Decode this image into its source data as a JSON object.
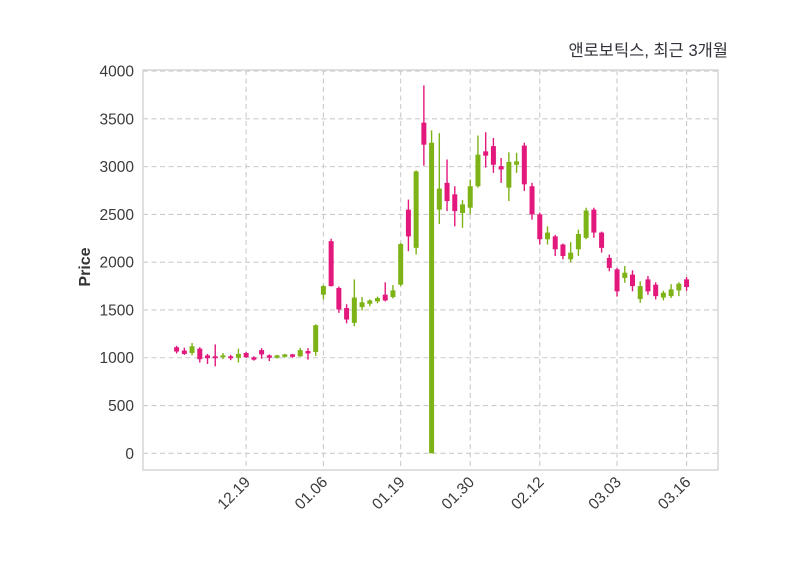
{
  "title": "앤로보틱스, 최근 3개월",
  "colors": {
    "up": "#7db317",
    "down": "#e2187d",
    "grid": "#cbcbcb",
    "border": "#d6d6d6",
    "tick_text": "#3a3a3a",
    "title_text": "#31313a",
    "background": "#ffffff"
  },
  "chart_data": {
    "type": "candlestick",
    "title": "앤로보틱스, 최근 3개월",
    "xlabel": "",
    "ylabel": "Price",
    "ylim": [
      0,
      4000
    ],
    "yticks": [
      0,
      500,
      1000,
      1500,
      2000,
      2500,
      3000,
      3500,
      4000
    ],
    "grid": "dashed",
    "legend": "none",
    "xticklabels": [
      "12.19",
      "01.06",
      "01.19",
      "01.30",
      "02.12",
      "03.03",
      "03.16"
    ],
    "xtick_candle_indices": [
      9,
      19,
      29,
      38,
      47,
      57,
      66
    ],
    "candles_format": [
      "open",
      "high",
      "low",
      "close"
    ],
    "candles": [
      [
        1110,
        1125,
        1045,
        1065
      ],
      [
        1075,
        1105,
        1030,
        1040
      ],
      [
        1050,
        1155,
        1025,
        1120
      ],
      [
        1095,
        1110,
        950,
        985
      ],
      [
        1025,
        1040,
        935,
        995
      ],
      [
        1015,
        1140,
        910,
        995
      ],
      [
        1005,
        1050,
        985,
        1025
      ],
      [
        1015,
        1030,
        975,
        995
      ],
      [
        1000,
        1095,
        950,
        1040
      ],
      [
        1050,
        1060,
        1000,
        1005
      ],
      [
        1005,
        1015,
        970,
        980
      ],
      [
        1080,
        1100,
        990,
        1035
      ],
      [
        1025,
        1035,
        965,
        1000
      ],
      [
        1000,
        1030,
        990,
        1025
      ],
      [
        1010,
        1040,
        1000,
        1035
      ],
      [
        1035,
        1040,
        1000,
        1010
      ],
      [
        1015,
        1105,
        1010,
        1080
      ],
      [
        1070,
        1100,
        980,
        1045
      ],
      [
        1060,
        1350,
        1020,
        1340
      ],
      [
        1660,
        1760,
        1610,
        1750
      ],
      [
        2220,
        2245,
        1745,
        1750
      ],
      [
        1730,
        1745,
        1470,
        1505
      ],
      [
        1520,
        1560,
        1360,
        1400
      ],
      [
        1365,
        1820,
        1330,
        1630
      ],
      [
        1530,
        1635,
        1495,
        1580
      ],
      [
        1565,
        1610,
        1540,
        1600
      ],
      [
        1590,
        1640,
        1570,
        1625
      ],
      [
        1660,
        1790,
        1590,
        1600
      ],
      [
        1635,
        1760,
        1620,
        1705
      ],
      [
        1765,
        2200,
        1750,
        2190
      ],
      [
        2550,
        2655,
        2115,
        2270
      ],
      [
        2150,
        2960,
        2080,
        2950
      ],
      [
        3460,
        3850,
        3010,
        3230
      ],
      [
        0,
        3380,
        0,
        3250
      ],
      [
        2550,
        3350,
        2400,
        2770
      ],
      [
        2830,
        3075,
        2535,
        2640
      ],
      [
        2710,
        2795,
        2375,
        2535
      ],
      [
        2515,
        2650,
        2360,
        2605
      ],
      [
        2570,
        2865,
        2500,
        2795
      ],
      [
        2795,
        3325,
        2780,
        3125
      ],
      [
        3160,
        3360,
        2990,
        3115
      ],
      [
        3215,
        3300,
        2935,
        3020
      ],
      [
        3005,
        3090,
        2830,
        2970
      ],
      [
        2780,
        3150,
        2640,
        3050
      ],
      [
        3020,
        3145,
        2935,
        3055
      ],
      [
        3220,
        3250,
        2745,
        2815
      ],
      [
        2795,
        2830,
        2445,
        2500
      ],
      [
        2500,
        2520,
        2185,
        2240
      ],
      [
        2240,
        2375,
        2185,
        2310
      ],
      [
        2270,
        2285,
        2065,
        2135
      ],
      [
        2185,
        2195,
        2030,
        2065
      ],
      [
        2030,
        2210,
        2000,
        2100
      ],
      [
        2135,
        2340,
        2065,
        2295
      ],
      [
        2255,
        2570,
        2240,
        2540
      ],
      [
        2550,
        2570,
        2255,
        2310
      ],
      [
        2310,
        2320,
        2100,
        2150
      ],
      [
        2045,
        2080,
        1905,
        1940
      ],
      [
        1925,
        1940,
        1640,
        1695
      ],
      [
        1835,
        1960,
        1785,
        1890
      ],
      [
        1870,
        1915,
        1695,
        1750
      ],
      [
        1615,
        1800,
        1575,
        1750
      ],
      [
        1820,
        1855,
        1660,
        1695
      ],
      [
        1765,
        1790,
        1610,
        1645
      ],
      [
        1630,
        1700,
        1600,
        1680
      ],
      [
        1645,
        1770,
        1625,
        1715
      ],
      [
        1705,
        1790,
        1645,
        1775
      ],
      [
        1820,
        1845,
        1700,
        1740
      ]
    ]
  }
}
